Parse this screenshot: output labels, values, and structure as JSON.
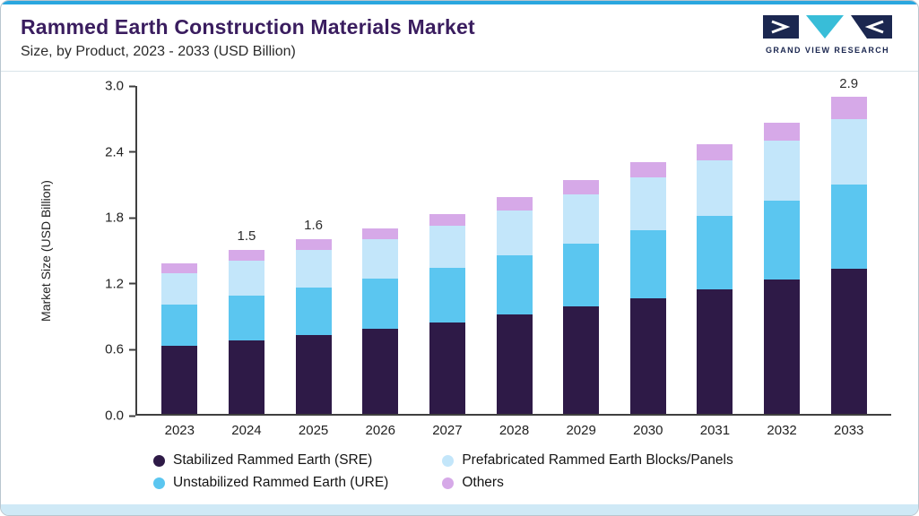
{
  "header": {
    "title": "Rammed Earth Construction Materials Market",
    "subtitle": "Size, by Product, 2023 - 2033 (USD Billion)",
    "logo_text": "GRAND VIEW RESEARCH"
  },
  "chart_data": {
    "type": "bar",
    "stacked": true,
    "title": "Rammed Earth Construction Materials Market Size, by Product, 2023 - 2033 (USD Billion)",
    "xlabel": "",
    "ylabel": "Market Size (USD Billion)",
    "ylim": [
      0,
      3.0
    ],
    "yticks": [
      "0.0",
      "0.6",
      "1.2",
      "1.8",
      "2.4",
      "3.0"
    ],
    "grid": false,
    "legend_position": "bottom",
    "categories": [
      "2023",
      "2024",
      "2025",
      "2026",
      "2027",
      "2028",
      "2029",
      "2030",
      "2031",
      "2032",
      "2033"
    ],
    "total_labels": [
      "",
      "1.5",
      "1.6",
      "",
      "",
      "",
      "",
      "",
      "",
      "",
      "2.9"
    ],
    "series": [
      {
        "name": "Stabilized Rammed Earth (SRE)",
        "color": "#2e1a47",
        "values": [
          0.62,
          0.67,
          0.72,
          0.78,
          0.84,
          0.91,
          0.98,
          1.06,
          1.14,
          1.23,
          1.33
        ]
      },
      {
        "name": "Unstabilized Rammed Earth (URE)",
        "color": "#5bc6f0",
        "values": [
          0.38,
          0.41,
          0.44,
          0.46,
          0.5,
          0.54,
          0.58,
          0.62,
          0.67,
          0.72,
          0.77
        ]
      },
      {
        "name": "Prefabricated Rammed Earth Blocks/Panels",
        "color": "#c3e6fa",
        "values": [
          0.29,
          0.32,
          0.34,
          0.36,
          0.38,
          0.41,
          0.45,
          0.48,
          0.51,
          0.55,
          0.6
        ]
      },
      {
        "name": "Others",
        "color": "#d6a9e8",
        "values": [
          0.09,
          0.1,
          0.1,
          0.1,
          0.11,
          0.12,
          0.13,
          0.14,
          0.15,
          0.16,
          0.2
        ]
      }
    ]
  },
  "legend": {
    "items": [
      {
        "label": "Stabilized Rammed Earth (SRE)",
        "color": "#2e1a47"
      },
      {
        "label": "Prefabricated Rammed Earth Blocks/Panels",
        "color": "#c3e6fa"
      },
      {
        "label": "Unstabilized Rammed Earth (URE)",
        "color": "#5bc6f0"
      },
      {
        "label": "Others",
        "color": "#d6a9e8"
      }
    ]
  },
  "colors": {
    "accent_line": "#2aa7df",
    "title": "#3a1d5f",
    "logo_navy": "#1b2750",
    "logo_teal": "#38bdd8",
    "bottom_band": "#cfe9f6"
  }
}
